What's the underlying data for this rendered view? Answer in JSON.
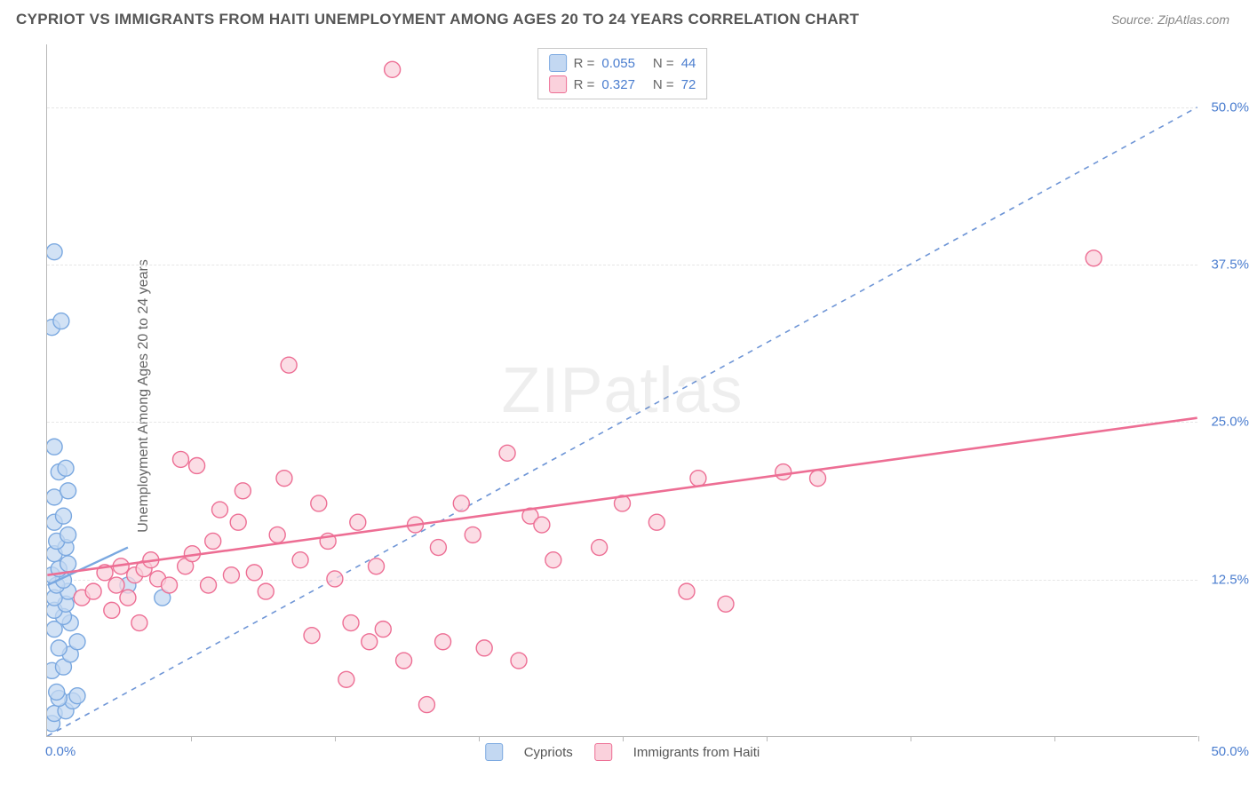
{
  "title": "CYPRIOT VS IMMIGRANTS FROM HAITI UNEMPLOYMENT AMONG AGES 20 TO 24 YEARS CORRELATION CHART",
  "source": "Source: ZipAtlas.com",
  "y_label": "Unemployment Among Ages 20 to 24 years",
  "watermark": "ZIPatlas",
  "chart": {
    "type": "scatter",
    "xlim": [
      0,
      50
    ],
    "ylim": [
      0,
      55
    ],
    "y_ticks": [
      12.5,
      25.0,
      37.5,
      50.0
    ],
    "y_tick_labels": [
      "12.5%",
      "25.0%",
      "37.5%",
      "50.0%"
    ],
    "x_ticks": [
      6.25,
      12.5,
      18.75,
      25.0,
      31.25,
      37.5,
      43.75,
      50.0
    ],
    "x_min_label": "0.0%",
    "x_max_label": "50.0%",
    "background_color": "#ffffff",
    "grid_color": "#e6e6e6",
    "axis_color": "#b8b8b8",
    "tick_label_color": "#4a7dcf",
    "marker_radius": 9,
    "marker_stroke_width": 1.4,
    "identity_line": {
      "color": "#6e95d6",
      "dash": "6,6",
      "width": 1.6,
      "x1": 0,
      "y1": 0,
      "x2": 50,
      "y2": 50
    },
    "series": [
      {
        "name": "Cypriots",
        "fill": "#c3d8f2",
        "stroke": "#7aa8e0",
        "r_value": "0.055",
        "n_value": "44",
        "regression": {
          "x1": 0,
          "y1": 12.0,
          "x2": 3.5,
          "y2": 15.0,
          "width": 2.4
        },
        "points": [
          [
            0.2,
            1.0
          ],
          [
            0.3,
            1.8
          ],
          [
            0.8,
            2.0
          ],
          [
            1.1,
            2.8
          ],
          [
            0.5,
            3.0
          ],
          [
            1.3,
            3.2
          ],
          [
            0.4,
            3.5
          ],
          [
            0.2,
            5.2
          ],
          [
            0.7,
            5.5
          ],
          [
            1.0,
            6.5
          ],
          [
            0.5,
            7.0
          ],
          [
            1.3,
            7.5
          ],
          [
            0.3,
            8.5
          ],
          [
            1.0,
            9.0
          ],
          [
            0.7,
            9.5
          ],
          [
            0.3,
            10.0
          ],
          [
            0.8,
            10.5
          ],
          [
            0.3,
            11.0
          ],
          [
            0.9,
            11.5
          ],
          [
            0.4,
            12.0
          ],
          [
            0.7,
            12.4
          ],
          [
            0.2,
            12.8
          ],
          [
            3.5,
            12.0
          ],
          [
            0.5,
            13.3
          ],
          [
            0.9,
            13.7
          ],
          [
            5.0,
            11.0
          ],
          [
            0.3,
            14.5
          ],
          [
            0.8,
            15.0
          ],
          [
            0.4,
            15.5
          ],
          [
            0.9,
            16.0
          ],
          [
            0.3,
            17.0
          ],
          [
            0.7,
            17.5
          ],
          [
            0.3,
            19.0
          ],
          [
            0.9,
            19.5
          ],
          [
            0.5,
            21.0
          ],
          [
            0.8,
            21.3
          ],
          [
            0.3,
            23.0
          ],
          [
            0.2,
            32.5
          ],
          [
            0.6,
            33.0
          ],
          [
            0.3,
            38.5
          ]
        ]
      },
      {
        "name": "Immigrants from Haiti",
        "fill": "#fad1dc",
        "stroke": "#ed6e94",
        "r_value": "0.327",
        "n_value": "72",
        "regression": {
          "x1": 0,
          "y1": 12.8,
          "x2": 50,
          "y2": 25.3,
          "width": 2.6
        },
        "points": [
          [
            1.5,
            11.0
          ],
          [
            2.0,
            11.5
          ],
          [
            2.5,
            13.0
          ],
          [
            2.8,
            10.0
          ],
          [
            3.0,
            12.0
          ],
          [
            3.2,
            13.5
          ],
          [
            3.5,
            11.0
          ],
          [
            3.8,
            12.8
          ],
          [
            4.0,
            9.0
          ],
          [
            4.2,
            13.3
          ],
          [
            4.5,
            14.0
          ],
          [
            4.8,
            12.5
          ],
          [
            5.3,
            12.0
          ],
          [
            5.8,
            22.0
          ],
          [
            6.0,
            13.5
          ],
          [
            6.3,
            14.5
          ],
          [
            6.5,
            21.5
          ],
          [
            7.0,
            12.0
          ],
          [
            7.2,
            15.5
          ],
          [
            7.5,
            18.0
          ],
          [
            8.0,
            12.8
          ],
          [
            8.3,
            17.0
          ],
          [
            8.5,
            19.5
          ],
          [
            9.0,
            13.0
          ],
          [
            9.5,
            11.5
          ],
          [
            10.0,
            16.0
          ],
          [
            10.3,
            20.5
          ],
          [
            10.5,
            29.5
          ],
          [
            11.0,
            14.0
          ],
          [
            11.5,
            8.0
          ],
          [
            11.8,
            18.5
          ],
          [
            12.2,
            15.5
          ],
          [
            12.5,
            12.5
          ],
          [
            13.0,
            4.5
          ],
          [
            13.2,
            9.0
          ],
          [
            13.5,
            17.0
          ],
          [
            14.0,
            7.5
          ],
          [
            14.3,
            13.5
          ],
          [
            14.6,
            8.5
          ],
          [
            15.0,
            53.0
          ],
          [
            15.5,
            6.0
          ],
          [
            16.0,
            16.8
          ],
          [
            16.5,
            2.5
          ],
          [
            17.0,
            15.0
          ],
          [
            17.2,
            7.5
          ],
          [
            18.0,
            18.5
          ],
          [
            18.5,
            16.0
          ],
          [
            19.0,
            7.0
          ],
          [
            20.0,
            22.5
          ],
          [
            20.5,
            6.0
          ],
          [
            21.0,
            17.5
          ],
          [
            21.5,
            16.8
          ],
          [
            22.0,
            14.0
          ],
          [
            24.0,
            15.0
          ],
          [
            25.0,
            18.5
          ],
          [
            26.5,
            17.0
          ],
          [
            27.8,
            11.5
          ],
          [
            28.3,
            20.5
          ],
          [
            29.5,
            10.5
          ],
          [
            32.0,
            21.0
          ],
          [
            33.5,
            20.5
          ],
          [
            45.5,
            38.0
          ]
        ]
      }
    ],
    "legend": {
      "r_label": "R =",
      "n_label": "N ="
    }
  }
}
